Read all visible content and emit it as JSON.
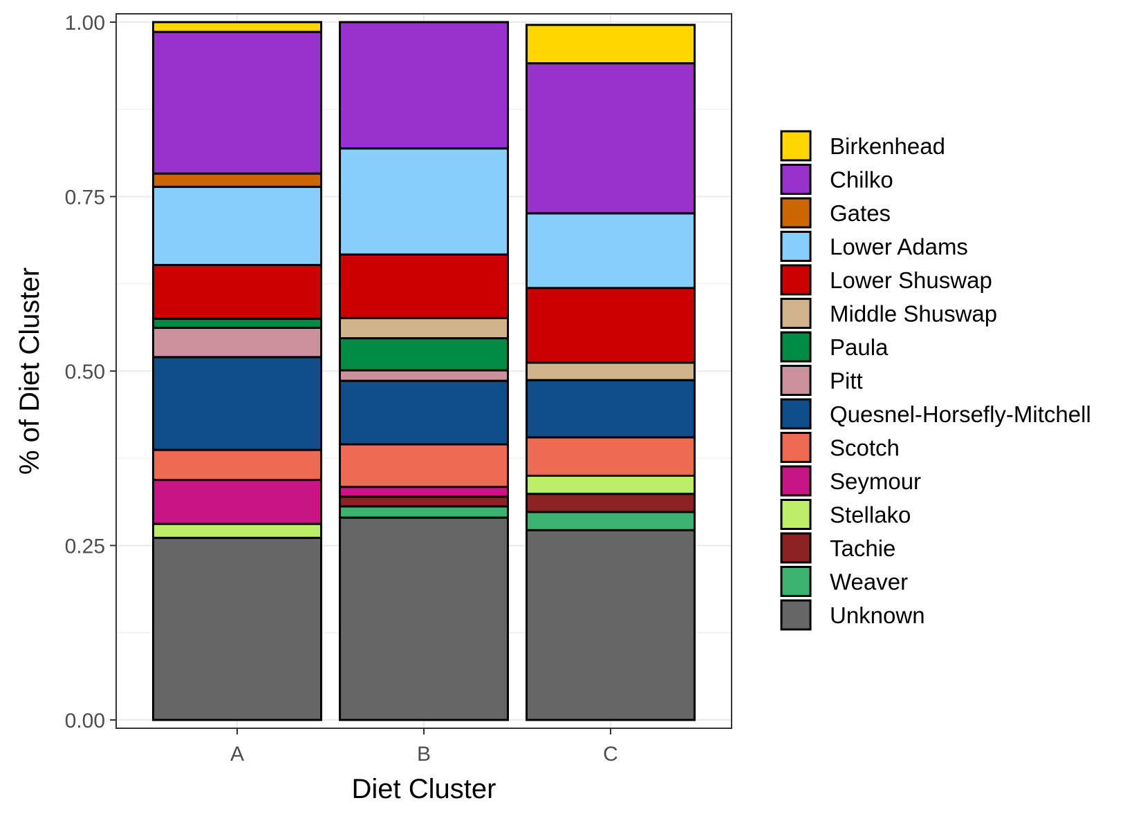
{
  "chart_data": {
    "type": "bar",
    "stacked": true,
    "xlabel": "Diet Cluster",
    "ylabel": "% of Diet Cluster",
    "ylim": [
      0,
      1
    ],
    "y_ticks": [
      "0.00",
      "0.25",
      "0.50",
      "0.75",
      "1.00"
    ],
    "grid": true,
    "legend_position": "right",
    "categories": [
      "A",
      "B",
      "C"
    ],
    "series": [
      {
        "name": "Birkenhead",
        "color": "#FFD700",
        "values": [
          0.014,
          0.0,
          0.055
        ]
      },
      {
        "name": "Chilko",
        "color": "#9932CC",
        "values": [
          0.203,
          0.181,
          0.215
        ]
      },
      {
        "name": "Gates",
        "color": "#CC6600",
        "values": [
          0.019,
          0.0,
          0.0
        ]
      },
      {
        "name": "Lower Adams",
        "color": "#87CEFA",
        "values": [
          0.112,
          0.152,
          0.107
        ]
      },
      {
        "name": "Lower Shuswap",
        "color": "#CC0000",
        "values": [
          0.077,
          0.091,
          0.107
        ]
      },
      {
        "name": "Middle Shuswap",
        "color": "#D2B48C",
        "values": [
          0.0,
          0.029,
          0.025
        ]
      },
      {
        "name": "Paula",
        "color": "#008B45",
        "values": [
          0.013,
          0.046,
          0.0
        ]
      },
      {
        "name": "Pitt",
        "color": "#CD919E",
        "values": [
          0.042,
          0.015,
          0.0
        ]
      },
      {
        "name": "Quesnel-Horsefly-Mitchell",
        "color": "#104E8B",
        "values": [
          0.133,
          0.091,
          0.082
        ]
      },
      {
        "name": "Scotch",
        "color": "#EE6A50",
        "values": [
          0.043,
          0.061,
          0.055
        ]
      },
      {
        "name": "Seymour",
        "color": "#C71585",
        "values": [
          0.063,
          0.014,
          0.0
        ]
      },
      {
        "name": "Stellako",
        "color": "#BCEE68",
        "values": [
          0.02,
          0.0,
          0.026
        ]
      },
      {
        "name": "Tachie",
        "color": "#8B2323",
        "values": [
          0.0,
          0.014,
          0.026
        ]
      },
      {
        "name": "Weaver",
        "color": "#3CB371",
        "values": [
          0.0,
          0.016,
          0.026
        ]
      },
      {
        "name": "Unknown",
        "color": "#666666",
        "values": [
          0.261,
          0.29,
          0.272
        ]
      }
    ]
  }
}
